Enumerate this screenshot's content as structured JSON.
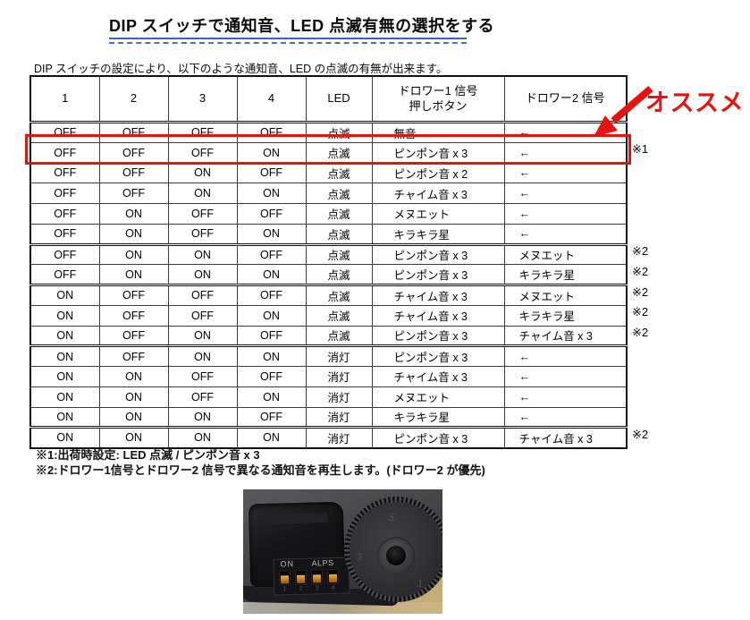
{
  "title": "DIP スイッチで通知音、LED 点滅有無の選択をする",
  "intro": "DIP スイッチの設定により、以下のような通知音、LED の点滅の有無が出来ます。",
  "recommend": {
    "label": "オススメ"
  },
  "table": {
    "headers": {
      "sw1": "1",
      "sw2": "2",
      "sw3": "3",
      "sw4": "4",
      "led": "LED",
      "drawer1_line1": "ドロワー1 信号",
      "drawer1_line2": "押しボタン",
      "drawer2": "ドロワー2 信号"
    },
    "rows": [
      {
        "switches": [
          "OFF",
          "OFF",
          "OFF",
          "OFF"
        ],
        "led": "点滅",
        "drawer1": "無音",
        "drawer2": "←",
        "note": "",
        "highlight": false,
        "group_start": false
      },
      {
        "switches": [
          "OFF",
          "OFF",
          "OFF",
          "ON"
        ],
        "led": "点滅",
        "drawer1": "ピンポン音 x 3",
        "drawer2": "←",
        "note": "※1",
        "highlight": true,
        "group_start": false
      },
      {
        "switches": [
          "OFF",
          "OFF",
          "ON",
          "OFF"
        ],
        "led": "点滅",
        "drawer1": "ピンポン音 x 2",
        "drawer2": "←",
        "note": "",
        "highlight": false,
        "group_start": false
      },
      {
        "switches": [
          "OFF",
          "OFF",
          "ON",
          "ON"
        ],
        "led": "点滅",
        "drawer1": "チャイム音 x 3",
        "drawer2": "←",
        "note": "",
        "highlight": false,
        "group_start": false
      },
      {
        "switches": [
          "OFF",
          "ON",
          "OFF",
          "OFF"
        ],
        "led": "点滅",
        "drawer1": "メヌエット",
        "drawer2": "←",
        "note": "",
        "highlight": false,
        "group_start": false
      },
      {
        "switches": [
          "OFF",
          "ON",
          "OFF",
          "ON"
        ],
        "led": "点滅",
        "drawer1": "キラキラ星",
        "drawer2": "←",
        "note": "",
        "highlight": false,
        "group_start": false
      },
      {
        "switches": [
          "OFF",
          "ON",
          "ON",
          "OFF"
        ],
        "led": "点滅",
        "drawer1": "ピンポン音 x 3",
        "drawer2": "メヌエット",
        "note": "※2",
        "highlight": false,
        "group_start": true
      },
      {
        "switches": [
          "OFF",
          "ON",
          "ON",
          "ON"
        ],
        "led": "点滅",
        "drawer1": "ピンポン音 x 3",
        "drawer2": "キラキラ星",
        "note": "※2",
        "highlight": false,
        "group_start": false
      },
      {
        "switches": [
          "ON",
          "OFF",
          "OFF",
          "OFF"
        ],
        "led": "点滅",
        "drawer1": "チャイム音 x 3",
        "drawer2": "メヌエット",
        "note": "※2",
        "highlight": false,
        "group_start": true
      },
      {
        "switches": [
          "ON",
          "OFF",
          "OFF",
          "ON"
        ],
        "led": "点滅",
        "drawer1": "チャイム音 x 3",
        "drawer2": "キラキラ星",
        "note": "※2",
        "highlight": false,
        "group_start": false
      },
      {
        "switches": [
          "ON",
          "OFF",
          "ON",
          "OFF"
        ],
        "led": "点滅",
        "drawer1": "ピンポン音 x 3",
        "drawer2": "チャイム音 x 3",
        "note": "※2",
        "highlight": false,
        "group_start": false
      },
      {
        "switches": [
          "ON",
          "OFF",
          "ON",
          "ON"
        ],
        "led": "消灯",
        "drawer1": "ピンポン音 x 3",
        "drawer2": "←",
        "note": "",
        "highlight": false,
        "group_start": true
      },
      {
        "switches": [
          "ON",
          "ON",
          "OFF",
          "OFF"
        ],
        "led": "消灯",
        "drawer1": "チャイム音 x 3",
        "drawer2": "←",
        "note": "",
        "highlight": false,
        "group_start": false
      },
      {
        "switches": [
          "ON",
          "ON",
          "OFF",
          "ON"
        ],
        "led": "消灯",
        "drawer1": "メヌエット",
        "drawer2": "←",
        "note": "",
        "highlight": false,
        "group_start": false
      },
      {
        "switches": [
          "ON",
          "ON",
          "ON",
          "OFF"
        ],
        "led": "消灯",
        "drawer1": "キラキラ星",
        "drawer2": "←",
        "note": "",
        "highlight": false,
        "group_start": false
      },
      {
        "switches": [
          "ON",
          "ON",
          "ON",
          "ON"
        ],
        "led": "消灯",
        "drawer1": "ピンポン音 x 3",
        "drawer2": "チャイム音 x 3",
        "note": "※2",
        "highlight": false,
        "group_start": true
      }
    ]
  },
  "footnotes": {
    "note1": "※1:出荷時設定: LED 点滅 / ピンポン音 x 3",
    "note2": "※2:ドロワー1信号とドロワー2 信号で異なる通知音を再生します。(ドロワー2 が優先)"
  },
  "photo": {
    "dip_label_on": "ON",
    "dip_label_alps": "ALPS",
    "switch_numbers": [
      "1",
      "2",
      "3",
      "4"
    ],
    "dial_marks": [
      "5",
      "3",
      "1"
    ]
  },
  "colors": {
    "accent_red": "#e8120e",
    "underline_blue": "#3c64ae",
    "switch_orange": "#d4912c"
  }
}
